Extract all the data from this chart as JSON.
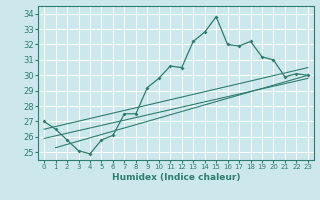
{
  "xlabel": "Humidex (Indice chaleur)",
  "ylabel": "",
  "bg_color": "#cce8ec",
  "line_color": "#2e7d6e",
  "grid_color": "#b0d8dc",
  "xlim": [
    -0.5,
    23.5
  ],
  "ylim": [
    24.5,
    34.5
  ],
  "yticks": [
    25,
    26,
    27,
    28,
    29,
    30,
    31,
    32,
    33,
    34
  ],
  "xticks": [
    0,
    1,
    2,
    3,
    4,
    5,
    6,
    7,
    8,
    9,
    10,
    11,
    12,
    13,
    14,
    15,
    16,
    17,
    18,
    19,
    20,
    21,
    22,
    23
  ],
  "data_line": [
    [
      0,
      27.0
    ],
    [
      1,
      26.5
    ],
    [
      2,
      25.8
    ],
    [
      3,
      25.1
    ],
    [
      4,
      24.9
    ],
    [
      5,
      25.8
    ],
    [
      6,
      26.1
    ],
    [
      7,
      27.5
    ],
    [
      8,
      27.5
    ],
    [
      9,
      29.2
    ],
    [
      10,
      29.8
    ],
    [
      11,
      30.6
    ],
    [
      12,
      30.5
    ],
    [
      13,
      32.2
    ],
    [
      14,
      32.8
    ],
    [
      15,
      33.8
    ],
    [
      16,
      32.0
    ],
    [
      17,
      31.9
    ],
    [
      18,
      32.2
    ],
    [
      19,
      31.2
    ],
    [
      20,
      31.0
    ],
    [
      21,
      29.9
    ],
    [
      22,
      30.1
    ],
    [
      23,
      30.0
    ]
  ],
  "trend_line1": [
    [
      0,
      25.9
    ],
    [
      23,
      29.8
    ]
  ],
  "trend_line2": [
    [
      0,
      26.5
    ],
    [
      23,
      30.5
    ]
  ],
  "trend_line3": [
    [
      1,
      25.3
    ],
    [
      23,
      30.0
    ]
  ]
}
